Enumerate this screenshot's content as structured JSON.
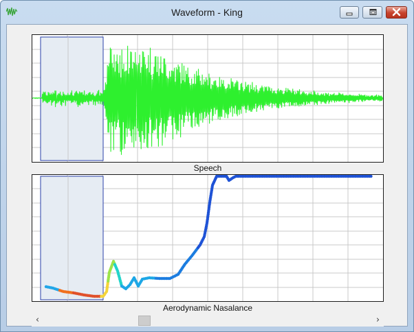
{
  "window": {
    "title": "Waveform - King",
    "icons": {
      "app": "waveform-icon",
      "minimize": "minimize-icon",
      "maximize": "maximize-icon",
      "close": "close-icon"
    }
  },
  "panels": {
    "speech": {
      "label": "Speech",
      "trace_color": "#2ef02e"
    },
    "nasalance": {
      "label": "Aerodynamic Nasalance",
      "trace_color": "#1f53d6"
    }
  },
  "selection_color": "#e6ecf3",
  "scrollbar": {
    "left_arrow": "‹",
    "right_arrow": "›"
  }
}
